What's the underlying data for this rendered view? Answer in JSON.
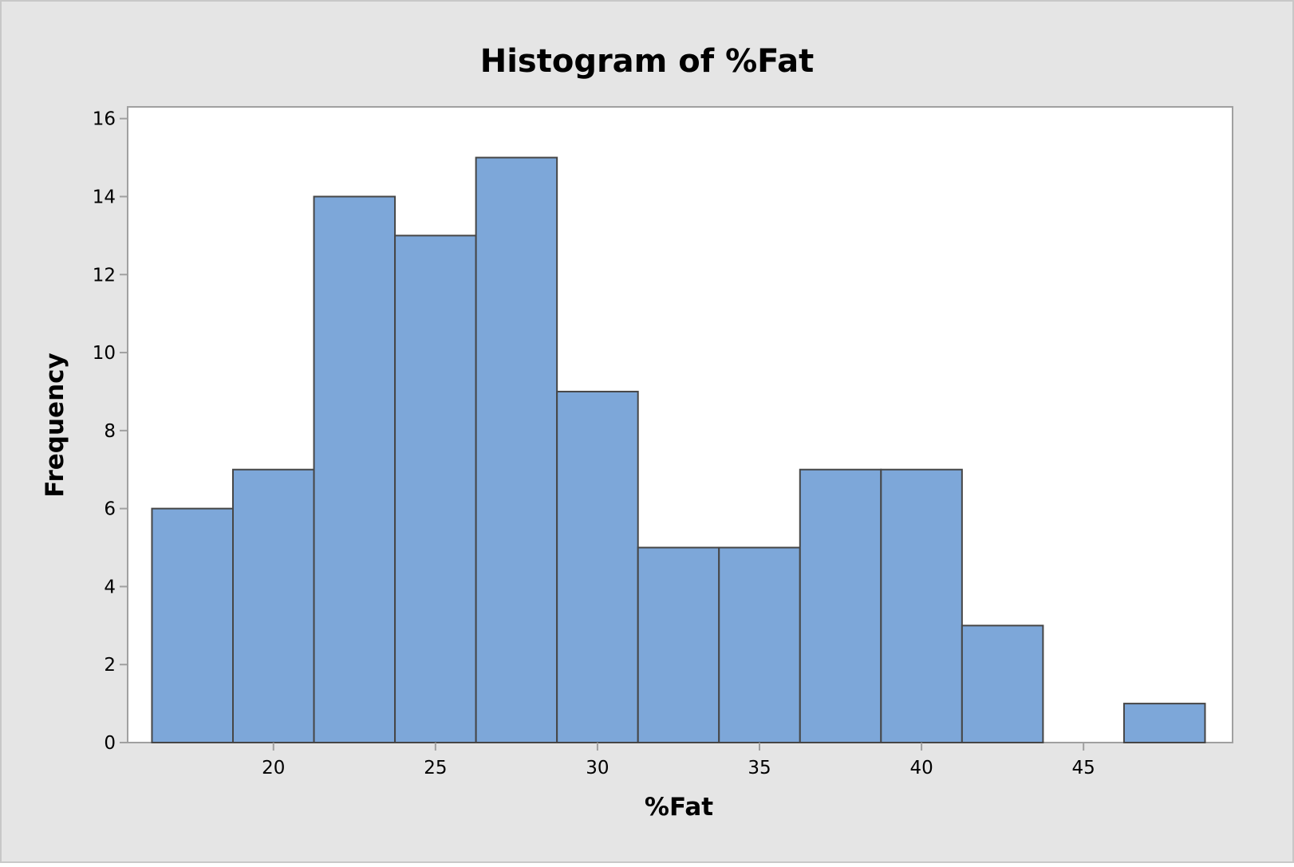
{
  "chart_data": {
    "type": "bar",
    "title": "Histogram of %Fat",
    "xlabel": "%Fat",
    "ylabel": "Frequency",
    "bin_width": 2.5,
    "bins": [
      {
        "start": 16.25,
        "end": 18.75,
        "count": 6
      },
      {
        "start": 18.75,
        "end": 21.25,
        "count": 7
      },
      {
        "start": 21.25,
        "end": 23.75,
        "count": 14
      },
      {
        "start": 23.75,
        "end": 26.25,
        "count": 13
      },
      {
        "start": 26.25,
        "end": 28.75,
        "count": 15
      },
      {
        "start": 28.75,
        "end": 31.25,
        "count": 9
      },
      {
        "start": 31.25,
        "end": 33.75,
        "count": 5
      },
      {
        "start": 33.75,
        "end": 36.25,
        "count": 5
      },
      {
        "start": 36.25,
        "end": 38.75,
        "count": 7
      },
      {
        "start": 38.75,
        "end": 41.25,
        "count": 7
      },
      {
        "start": 41.25,
        "end": 43.75,
        "count": 3
      },
      {
        "start": 43.75,
        "end": 46.25,
        "count": 0
      },
      {
        "start": 46.25,
        "end": 48.75,
        "count": 1
      }
    ],
    "xlim": [
      15.5,
      49.6
    ],
    "ylim": [
      0,
      16.3
    ],
    "xticks": [
      20,
      25,
      30,
      35,
      40,
      45
    ],
    "yticks": [
      0,
      2,
      4,
      6,
      8,
      10,
      12,
      14,
      16
    ],
    "grid": false,
    "legend": "none",
    "colors": {
      "figure_background": "#E5E5E5",
      "plot_background": "#FFFFFF",
      "bar_fill": "#7DA7D9",
      "bar_stroke": "#464646",
      "axis": "#A0A0A0",
      "text": "#000000"
    }
  }
}
